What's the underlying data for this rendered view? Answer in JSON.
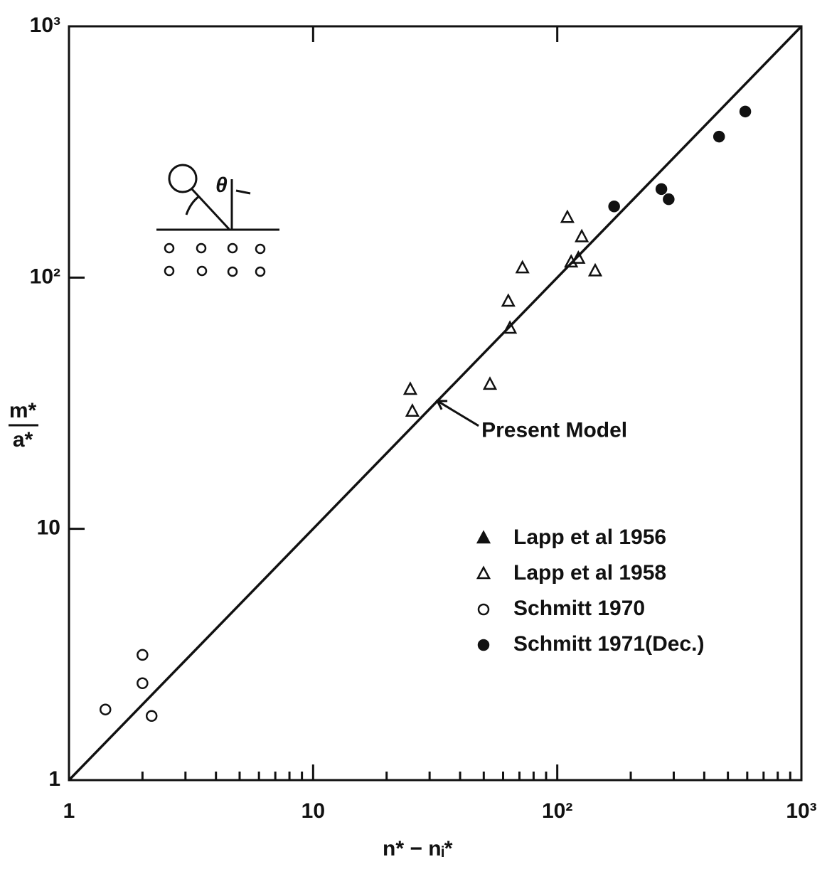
{
  "chart_data": {
    "type": "scatter",
    "xlog": true,
    "ylog": true,
    "xlim": [
      1,
      1000
    ],
    "ylim": [
      1,
      1000
    ],
    "xticks": [
      1,
      10,
      {
        "value": 100,
        "label": "10²"
      },
      {
        "value": 1000,
        "label": "10³"
      }
    ],
    "yticks": [
      1,
      10,
      {
        "value": 100,
        "label": "10²"
      },
      {
        "value": 1000,
        "label": "10³"
      }
    ],
    "xminor": [
      2,
      3,
      4,
      5,
      6,
      7,
      8,
      9,
      20,
      30,
      40,
      50,
      60,
      70,
      80,
      90,
      200,
      300,
      400,
      500,
      600,
      700,
      800,
      900
    ],
    "xlabel": "n* − nᵢ*",
    "ylabel_numerator": "m*",
    "ylabel_denominator": "a*",
    "inset_label": "θ",
    "color": "#111111",
    "series": [
      {
        "name": "Lapp et al 1956",
        "marker": "triangle-filled",
        "x": [],
        "y": []
      },
      {
        "name": "Lapp et al 1958",
        "marker": "triangle-open",
        "x": [
          25.0,
          25.5,
          53,
          63,
          64,
          72,
          110,
          126,
          114,
          122,
          143
        ],
        "y": [
          35.8,
          29.3,
          37.5,
          80.3,
          62.7,
          109,
          173,
          145,
          115,
          119,
          106
        ]
      },
      {
        "name": "Schmitt 1970",
        "marker": "circle-open",
        "x": [
          1.41,
          2.0,
          2.0,
          2.18
        ],
        "y": [
          1.91,
          3.15,
          2.43,
          1.8
        ]
      },
      {
        "name": "Schmitt 1971(Dec.)",
        "marker": "circle-half",
        "x": [
          171,
          267,
          286,
          460,
          589
        ],
        "y": [
          192,
          225,
          205,
          364,
          458
        ]
      },
      {
        "name": "Present Model",
        "marker": "line",
        "x": [
          1,
          1000
        ],
        "y": [
          1,
          1000
        ]
      }
    ]
  }
}
